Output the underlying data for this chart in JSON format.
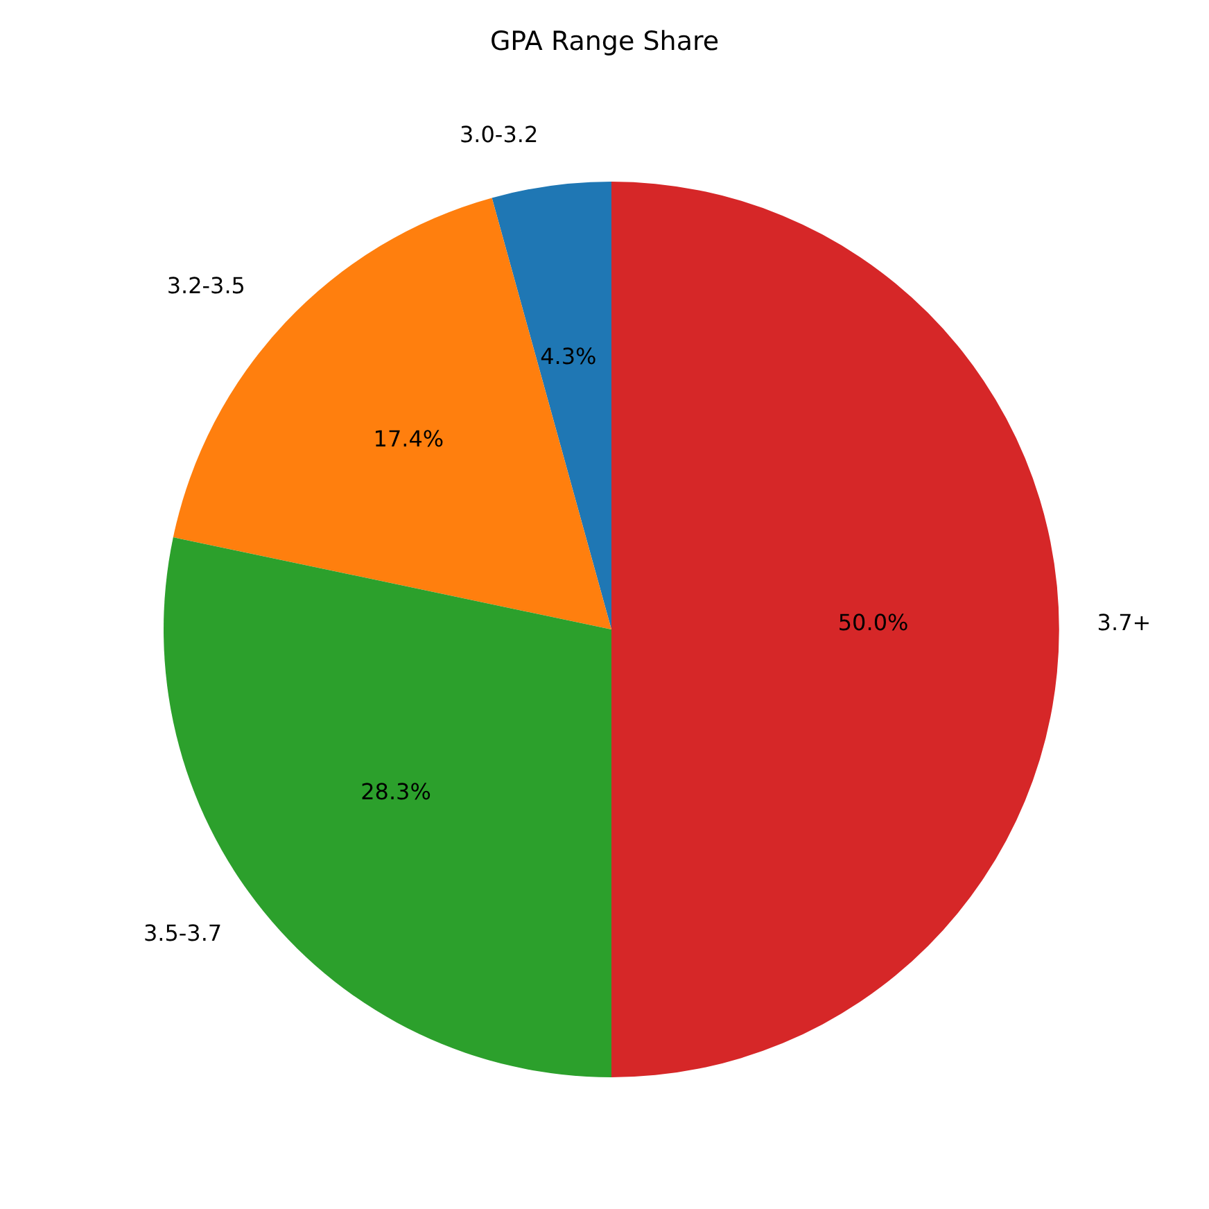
{
  "chart_data": {
    "type": "pie",
    "title": "GPA Range Share",
    "categories": [
      "3.0-3.2",
      "3.2-3.5",
      "3.5-3.7",
      "3.7+"
    ],
    "values": [
      4.3,
      17.4,
      28.3,
      50.0
    ],
    "colors": [
      "#1f77b4",
      "#ff7f0e",
      "#2ca02c",
      "#d62728"
    ],
    "value_labels": [
      "4.3%",
      "17.4%",
      "28.3%",
      "50.0%"
    ]
  }
}
